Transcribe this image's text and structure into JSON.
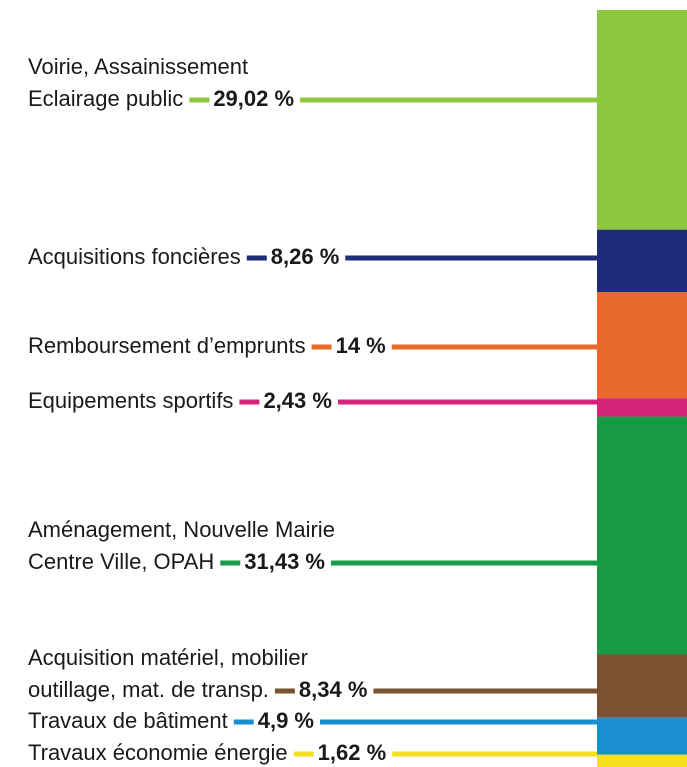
{
  "chart_data": {
    "type": "stacked-bar",
    "categories": [
      [
        "Voirie, Assainissement",
        "Eclairage public"
      ],
      [
        "Acquisitions foncières"
      ],
      [
        "Remboursement d’emprunts"
      ],
      [
        "Equipements sportifs"
      ],
      [
        "Aménagement, Nouvelle Mairie",
        "Centre Ville, OPAH"
      ],
      [
        "Acquisition matériel, mobilier",
        "outillage, mat. de transp."
      ],
      [
        "Travaux de bâtiment"
      ],
      [
        "Travaux économie énergie"
      ]
    ],
    "values": [
      29.02,
      8.26,
      14,
      2.43,
      31.43,
      8.34,
      4.9,
      1.62
    ],
    "value_labels": [
      "29,02 %",
      "8,26 %",
      "14 %",
      "2,43 %",
      "31,43 %",
      "8,34 %",
      "4,9 %",
      "1,62 %"
    ],
    "colors": [
      "#8dc63f",
      "#1f2a7a",
      "#e8692a",
      "#d6247a",
      "#1a9a46",
      "#7a5230",
      "#1a8fd0",
      "#f5e020"
    ]
  }
}
